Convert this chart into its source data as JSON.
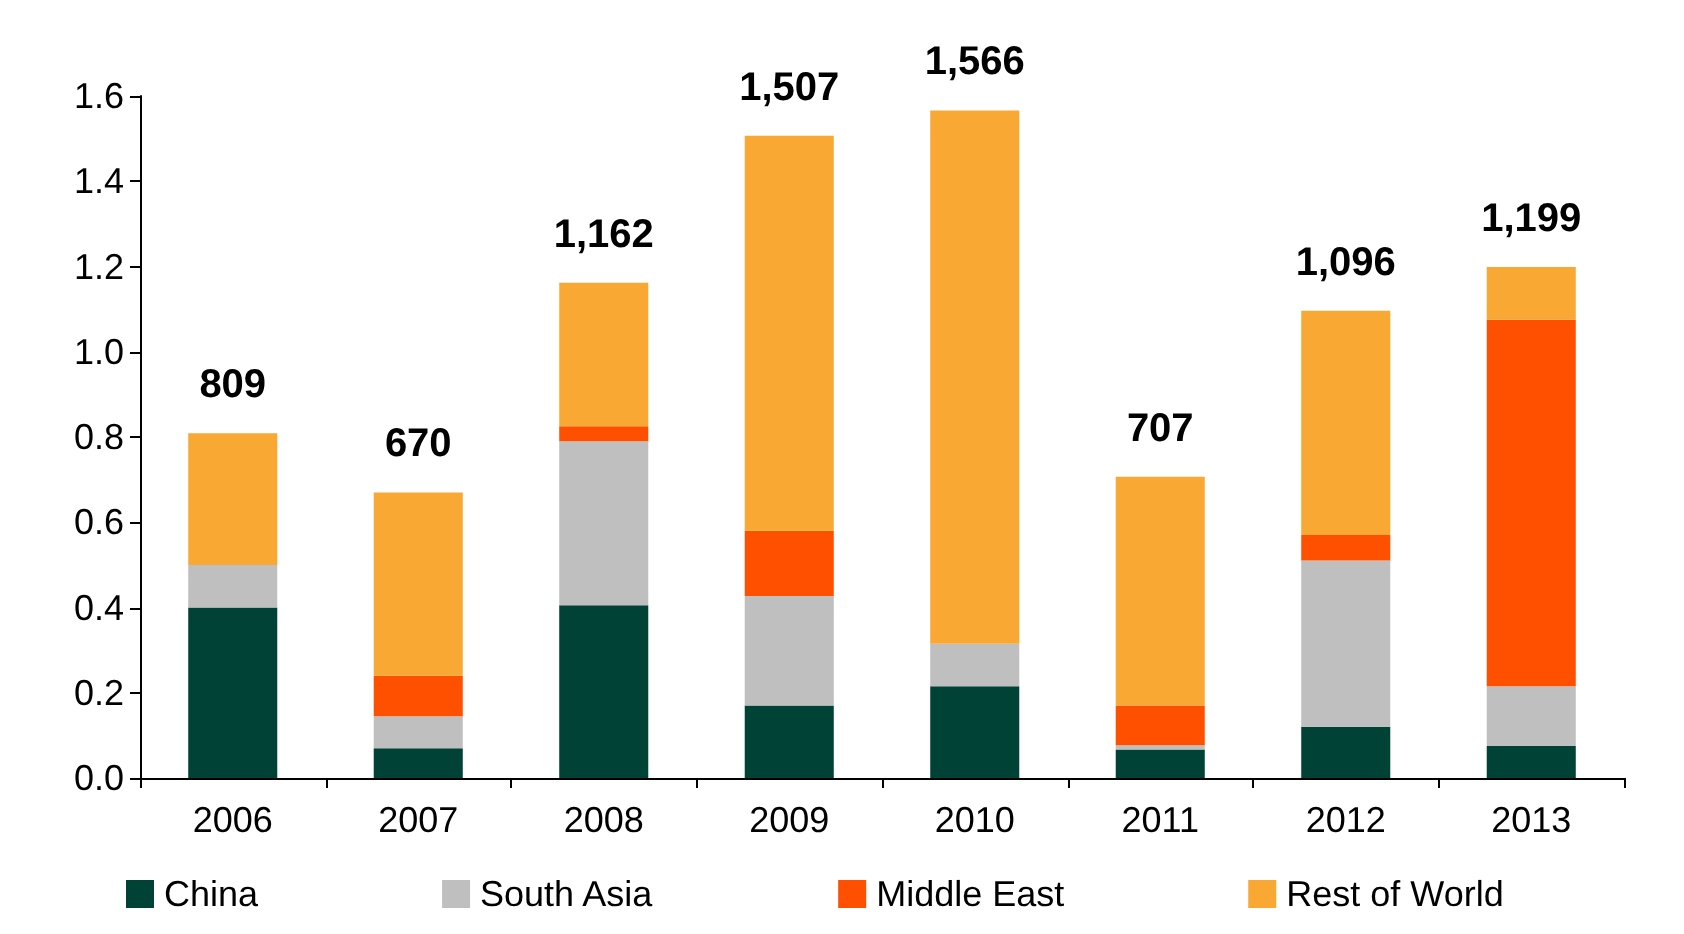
{
  "chart_data": {
    "type": "bar",
    "stacked": true,
    "categories": [
      "2006",
      "2007",
      "2008",
      "2009",
      "2010",
      "2011",
      "2012",
      "2013"
    ],
    "series": [
      {
        "name": "China",
        "color": "#004236",
        "values": [
          0.4,
          0.07,
          0.405,
          0.17,
          0.215,
          0.067,
          0.12,
          0.075
        ]
      },
      {
        "name": "South Asia",
        "color": "#bfbfbf",
        "values": [
          0.1,
          0.075,
          0.385,
          0.257,
          0.1,
          0.01,
          0.39,
          0.14
        ]
      },
      {
        "name": "Middle East",
        "color": "#ff5000",
        "values": [
          0,
          0.095,
          0.035,
          0.153,
          0,
          0.093,
          0.06,
          0.86
        ]
      },
      {
        "name": "Rest of World",
        "color": "#f9a833",
        "values": [
          0.309,
          0.43,
          0.337,
          0.927,
          1.251,
          0.537,
          0.526,
          0.124
        ]
      }
    ],
    "totals": [
      "809",
      "670",
      "1,162",
      "1,507",
      "1,566",
      "707",
      "1,096",
      "1,199"
    ],
    "ylim": [
      0,
      1.6
    ],
    "yticks": [
      {
        "value": 0,
        "label": "0.0"
      },
      {
        "value": 0.2,
        "label": "0.2"
      },
      {
        "value": 0.4,
        "label": "0.4"
      },
      {
        "value": 0.6,
        "label": "0.6"
      },
      {
        "value": 0.8,
        "label": "0.8"
      },
      {
        "value": 1,
        "label": "1.0"
      },
      {
        "value": 1.2,
        "label": "1.2"
      },
      {
        "value": 1.4,
        "label": "1.4"
      },
      {
        "value": 1.6,
        "label": "1.6"
      }
    ],
    "grid": false,
    "legend": "bottom"
  }
}
